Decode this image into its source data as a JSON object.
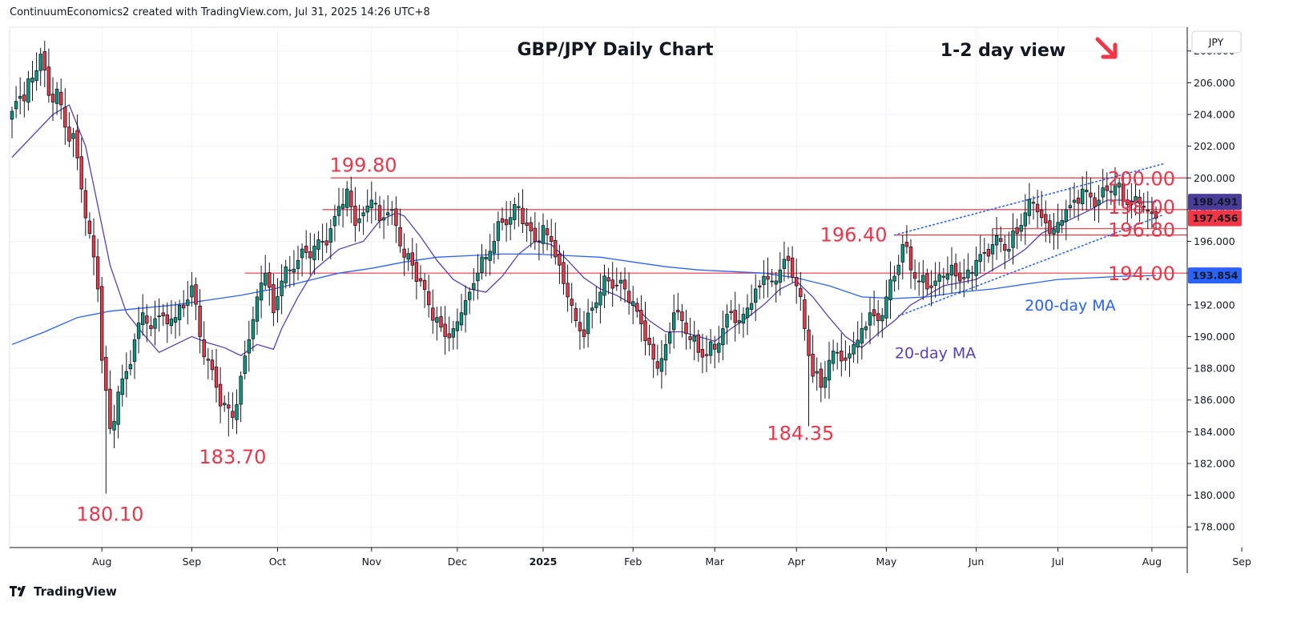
{
  "header": {
    "text": "ContinuumEconomics2 created with TradingView.com, Jul 31, 2025 14:26 UTC+8"
  },
  "footer": {
    "brand": "TradingView"
  },
  "chart_data": {
    "type": "candlestick",
    "title": "GBP/JPY Daily Chart",
    "subtitle": "1-2 day view",
    "currency_button": "JPY",
    "view_direction_icon": "arrow-down-right-icon",
    "y_ticks": [
      "178.000",
      "180.000",
      "182.000",
      "184.000",
      "186.000",
      "188.000",
      "190.000",
      "192.000",
      "194.000",
      "196.000",
      "198.000",
      "200.000",
      "202.000",
      "204.000",
      "206.000",
      "208.000"
    ],
    "ylim": [
      176.7,
      209.5
    ],
    "x_range_index": [
      0,
      284
    ],
    "x_ticks": [
      {
        "label": "Aug",
        "i": 22
      },
      {
        "label": "Sep",
        "i": 44
      },
      {
        "label": "Oct",
        "i": 65
      },
      {
        "label": "Nov",
        "i": 88
      },
      {
        "label": "Dec",
        "i": 109
      },
      {
        "label": "2025",
        "i": 130
      },
      {
        "label": "Feb",
        "i": 152
      },
      {
        "label": "Mar",
        "i": 172
      },
      {
        "label": "Apr",
        "i": 192
      },
      {
        "label": "May",
        "i": 214
      },
      {
        "label": "Jun",
        "i": 236
      },
      {
        "label": "Jul",
        "i": 256
      },
      {
        "label": "Aug",
        "i": 279
      },
      {
        "label": "Sep",
        "i": 301
      }
    ],
    "price_badges": [
      {
        "value": "198.491",
        "y": 198.49,
        "color": "#4a3c99"
      },
      {
        "value": "197.456",
        "y": 197.46,
        "color": "#f23645"
      },
      {
        "value": "193.854",
        "y": 193.85,
        "color": "#2962ff"
      }
    ],
    "levels": [
      {
        "value": 200.0,
        "label": "200.00",
        "label_price": 200.0,
        "i_start": 78
      },
      {
        "value": 198.0,
        "label": "198.00",
        "label_price": 198.2,
        "i_start": 76
      },
      {
        "value": 196.8,
        "label": "196.80",
        "label_price": 196.75,
        "i_start": 240
      },
      {
        "value": 196.4,
        "i_start": 216
      },
      {
        "value": 194.0,
        "label": "194.00",
        "label_price": 194.0,
        "i_start": 57
      }
    ],
    "annotations": [
      {
        "text": "199.80",
        "i": 86,
        "price": 200.8
      },
      {
        "text": "196.40",
        "i": 206,
        "price": 196.4
      },
      {
        "text": "183.70",
        "i": 54,
        "price": 182.4
      },
      {
        "text": "180.10",
        "i": 24,
        "price": 178.8
      },
      {
        "text": "184.35",
        "i": 193,
        "price": 183.9
      }
    ],
    "channel": {
      "upper": [
        [
          216,
          196.4
        ],
        [
          282,
          200.9
        ]
      ],
      "lower": [
        [
          217,
          191.3
        ],
        [
          282,
          197.7
        ]
      ]
    },
    "ma_labels": [
      {
        "text": "200-day MA",
        "i": 259,
        "price": 192.0,
        "color": "#2962ff"
      },
      {
        "text": "20-day MA",
        "i": 226,
        "price": 189.0,
        "color": "#5a3fb5"
      }
    ],
    "anchors": [
      {
        "i": 0,
        "c": 204.2
      },
      {
        "i": 5,
        "c": 206.3
      },
      {
        "i": 7,
        "c": 207.8
      },
      {
        "i": 9,
        "c": 205.2
      },
      {
        "i": 11,
        "c": 205.6
      },
      {
        "i": 13,
        "c": 203.2
      },
      {
        "i": 15,
        "c": 202.8
      },
      {
        "i": 17,
        "c": 199.3
      },
      {
        "i": 19,
        "c": 196.5
      },
      {
        "i": 21,
        "c": 193.0
      },
      {
        "i": 22,
        "c": 188.5
      },
      {
        "i": 24,
        "c": 184.2
      },
      {
        "i": 26,
        "c": 186.5
      },
      {
        "i": 28,
        "c": 187.8
      },
      {
        "i": 30,
        "c": 189.8
      },
      {
        "i": 32,
        "c": 191.5
      },
      {
        "i": 34,
        "c": 190.5
      },
      {
        "i": 36,
        "c": 191.3
      },
      {
        "i": 38,
        "c": 190.8
      },
      {
        "i": 40,
        "c": 191.2
      },
      {
        "i": 42,
        "c": 191.8
      },
      {
        "i": 44,
        "c": 193.2
      },
      {
        "i": 46,
        "c": 190.0
      },
      {
        "i": 48,
        "c": 188.5
      },
      {
        "i": 50,
        "c": 186.8
      },
      {
        "i": 52,
        "c": 185.8
      },
      {
        "i": 54,
        "c": 184.9
      },
      {
        "i": 56,
        "c": 187.5
      },
      {
        "i": 58,
        "c": 189.8
      },
      {
        "i": 60,
        "c": 192.5
      },
      {
        "i": 62,
        "c": 194.0
      },
      {
        "i": 64,
        "c": 191.5
      },
      {
        "i": 66,
        "c": 193.5
      },
      {
        "i": 68,
        "c": 194.2
      },
      {
        "i": 70,
        "c": 194.8
      },
      {
        "i": 72,
        "c": 195.3
      },
      {
        "i": 74,
        "c": 195.7
      },
      {
        "i": 76,
        "c": 196.0
      },
      {
        "i": 78,
        "c": 196.8
      },
      {
        "i": 80,
        "c": 198.2
      },
      {
        "i": 82,
        "c": 199.3
      },
      {
        "i": 84,
        "c": 197.0
      },
      {
        "i": 86,
        "c": 197.8
      },
      {
        "i": 88,
        "c": 198.6
      },
      {
        "i": 90,
        "c": 197.3
      },
      {
        "i": 92,
        "c": 197.8
      },
      {
        "i": 94,
        "c": 197.0
      },
      {
        "i": 96,
        "c": 195.0
      },
      {
        "i": 98,
        "c": 194.5
      },
      {
        "i": 100,
        "c": 193.5
      },
      {
        "i": 102,
        "c": 192.0
      },
      {
        "i": 104,
        "c": 191.2
      },
      {
        "i": 106,
        "c": 190.0
      },
      {
        "i": 108,
        "c": 190.5
      },
      {
        "i": 110,
        "c": 191.5
      },
      {
        "i": 112,
        "c": 192.8
      },
      {
        "i": 114,
        "c": 194.0
      },
      {
        "i": 116,
        "c": 195.0
      },
      {
        "i": 118,
        "c": 196.0
      },
      {
        "i": 120,
        "c": 197.2
      },
      {
        "i": 122,
        "c": 197.5
      },
      {
        "i": 124,
        "c": 198.2
      },
      {
        "i": 126,
        "c": 197.0
      },
      {
        "i": 128,
        "c": 196.0
      },
      {
        "i": 130,
        "c": 197.0
      },
      {
        "i": 132,
        "c": 196.0
      },
      {
        "i": 134,
        "c": 194.5
      },
      {
        "i": 136,
        "c": 192.5
      },
      {
        "i": 138,
        "c": 191.0
      },
      {
        "i": 140,
        "c": 190.0
      },
      {
        "i": 142,
        "c": 191.8
      },
      {
        "i": 144,
        "c": 192.8
      },
      {
        "i": 146,
        "c": 193.5
      },
      {
        "i": 148,
        "c": 193.2
      },
      {
        "i": 150,
        "c": 193.0
      },
      {
        "i": 152,
        "c": 192.2
      },
      {
        "i": 154,
        "c": 190.8
      },
      {
        "i": 156,
        "c": 189.5
      },
      {
        "i": 158,
        "c": 188.0
      },
      {
        "i": 160,
        "c": 189.5
      },
      {
        "i": 162,
        "c": 191.5
      },
      {
        "i": 164,
        "c": 191.0
      },
      {
        "i": 166,
        "c": 189.8
      },
      {
        "i": 168,
        "c": 189.0
      },
      {
        "i": 170,
        "c": 188.8
      },
      {
        "i": 172,
        "c": 189.2
      },
      {
        "i": 174,
        "c": 190.5
      },
      {
        "i": 176,
        "c": 191.5
      },
      {
        "i": 178,
        "c": 191.0
      },
      {
        "i": 180,
        "c": 191.8
      },
      {
        "i": 182,
        "c": 193.0
      },
      {
        "i": 184,
        "c": 193.8
      },
      {
        "i": 186,
        "c": 193.5
      },
      {
        "i": 188,
        "c": 194.2
      },
      {
        "i": 190,
        "c": 194.8
      },
      {
        "i": 192,
        "c": 193.2
      },
      {
        "i": 194,
        "c": 190.5
      },
      {
        "i": 196,
        "c": 187.5
      },
      {
        "i": 198,
        "c": 186.8
      },
      {
        "i": 200,
        "c": 188.5
      },
      {
        "i": 202,
        "c": 189.0
      },
      {
        "i": 204,
        "c": 188.5
      },
      {
        "i": 206,
        "c": 189.5
      },
      {
        "i": 208,
        "c": 190.5
      },
      {
        "i": 210,
        "c": 191.5
      },
      {
        "i": 212,
        "c": 191.0
      },
      {
        "i": 214,
        "c": 192.5
      },
      {
        "i": 216,
        "c": 193.8
      },
      {
        "i": 218,
        "c": 195.8
      },
      {
        "i": 220,
        "c": 194.2
      },
      {
        "i": 222,
        "c": 193.5
      },
      {
        "i": 224,
        "c": 193.0
      },
      {
        "i": 226,
        "c": 193.5
      },
      {
        "i": 228,
        "c": 193.8
      },
      {
        "i": 230,
        "c": 194.5
      },
      {
        "i": 232,
        "c": 193.5
      },
      {
        "i": 234,
        "c": 194.2
      },
      {
        "i": 236,
        "c": 194.8
      },
      {
        "i": 238,
        "c": 195.3
      },
      {
        "i": 240,
        "c": 195.8
      },
      {
        "i": 242,
        "c": 196.0
      },
      {
        "i": 244,
        "c": 195.5
      },
      {
        "i": 246,
        "c": 196.5
      },
      {
        "i": 248,
        "c": 197.8
      },
      {
        "i": 250,
        "c": 198.4
      },
      {
        "i": 252,
        "c": 197.5
      },
      {
        "i": 254,
        "c": 196.5
      },
      {
        "i": 256,
        "c": 197.2
      },
      {
        "i": 258,
        "c": 198.0
      },
      {
        "i": 260,
        "c": 198.6
      },
      {
        "i": 262,
        "c": 199.3
      },
      {
        "i": 264,
        "c": 198.8
      },
      {
        "i": 266,
        "c": 198.6
      },
      {
        "i": 268,
        "c": 199.2
      },
      {
        "i": 270,
        "c": 199.6
      },
      {
        "i": 272,
        "c": 198.5
      },
      {
        "i": 274,
        "c": 198.3
      },
      {
        "i": 276,
        "c": 198.4
      },
      {
        "i": 278,
        "c": 197.9
      },
      {
        "i": 280,
        "c": 197.46
      }
    ],
    "wick_overrides": [
      {
        "i": 7,
        "h": 208.2
      },
      {
        "i": 23,
        "l": 180.1
      },
      {
        "i": 53,
        "l": 183.7
      },
      {
        "i": 82,
        "h": 199.8
      },
      {
        "i": 195,
        "l": 184.35
      },
      {
        "i": 218,
        "h": 196.4
      },
      {
        "i": 271,
        "h": 200.0
      }
    ],
    "ma20": [
      [
        0,
        201.3
      ],
      [
        10,
        204.0
      ],
      [
        14,
        204.6
      ],
      [
        18,
        202.0
      ],
      [
        24,
        194.5
      ],
      [
        28,
        191.5
      ],
      [
        32,
        190.2
      ],
      [
        36,
        189.0
      ],
      [
        40,
        189.5
      ],
      [
        44,
        190.0
      ],
      [
        48,
        189.6
      ],
      [
        52,
        189.3
      ],
      [
        56,
        188.8
      ],
      [
        60,
        189.5
      ],
      [
        64,
        189.2
      ],
      [
        66,
        190.5
      ],
      [
        70,
        192.5
      ],
      [
        74,
        194.2
      ],
      [
        80,
        195.5
      ],
      [
        86,
        196.0
      ],
      [
        90,
        197.3
      ],
      [
        94,
        197.8
      ],
      [
        96,
        197.6
      ],
      [
        100,
        196.3
      ],
      [
        104,
        194.8
      ],
      [
        108,
        193.6
      ],
      [
        112,
        193.0
      ],
      [
        116,
        192.8
      ],
      [
        120,
        193.8
      ],
      [
        124,
        195.2
      ],
      [
        128,
        196.0
      ],
      [
        132,
        195.8
      ],
      [
        136,
        194.8
      ],
      [
        140,
        193.7
      ],
      [
        144,
        193.0
      ],
      [
        148,
        192.6
      ],
      [
        152,
        192.0
      ],
      [
        156,
        191.0
      ],
      [
        160,
        190.3
      ],
      [
        164,
        190.3
      ],
      [
        168,
        190.0
      ],
      [
        172,
        189.7
      ],
      [
        176,
        190.5
      ],
      [
        180,
        191.2
      ],
      [
        184,
        192.0
      ],
      [
        188,
        193.0
      ],
      [
        192,
        193.5
      ],
      [
        196,
        192.5
      ],
      [
        200,
        191.2
      ],
      [
        204,
        190.0
      ],
      [
        208,
        189.3
      ],
      [
        212,
        190.2
      ],
      [
        216,
        191.0
      ],
      [
        220,
        192.0
      ],
      [
        224,
        192.6
      ],
      [
        228,
        193.2
      ],
      [
        232,
        193.4
      ],
      [
        236,
        193.6
      ],
      [
        240,
        194.2
      ],
      [
        244,
        194.8
      ],
      [
        248,
        195.5
      ],
      [
        252,
        196.5
      ],
      [
        256,
        197.0
      ],
      [
        260,
        197.5
      ],
      [
        264,
        198.0
      ],
      [
        268,
        198.6
      ],
      [
        272,
        198.6
      ],
      [
        276,
        198.5
      ],
      [
        280,
        198.49
      ]
    ],
    "ma200": [
      [
        0,
        189.5
      ],
      [
        8,
        190.3
      ],
      [
        16,
        191.2
      ],
      [
        24,
        191.6
      ],
      [
        32,
        191.8
      ],
      [
        40,
        192.0
      ],
      [
        48,
        192.3
      ],
      [
        56,
        192.6
      ],
      [
        64,
        193.0
      ],
      [
        72,
        193.5
      ],
      [
        80,
        194.0
      ],
      [
        88,
        194.3
      ],
      [
        96,
        194.7
      ],
      [
        104,
        195.0
      ],
      [
        112,
        195.1
      ],
      [
        120,
        195.2
      ],
      [
        128,
        195.2
      ],
      [
        136,
        195.1
      ],
      [
        144,
        195.0
      ],
      [
        152,
        194.7
      ],
      [
        160,
        194.4
      ],
      [
        168,
        194.2
      ],
      [
        176,
        194.1
      ],
      [
        184,
        194.0
      ],
      [
        192,
        193.7
      ],
      [
        200,
        193.2
      ],
      [
        208,
        192.5
      ],
      [
        216,
        192.4
      ],
      [
        224,
        192.5
      ],
      [
        232,
        192.8
      ],
      [
        240,
        193.0
      ],
      [
        248,
        193.3
      ],
      [
        256,
        193.6
      ],
      [
        264,
        193.7
      ],
      [
        272,
        193.8
      ],
      [
        280,
        193.85
      ]
    ]
  }
}
